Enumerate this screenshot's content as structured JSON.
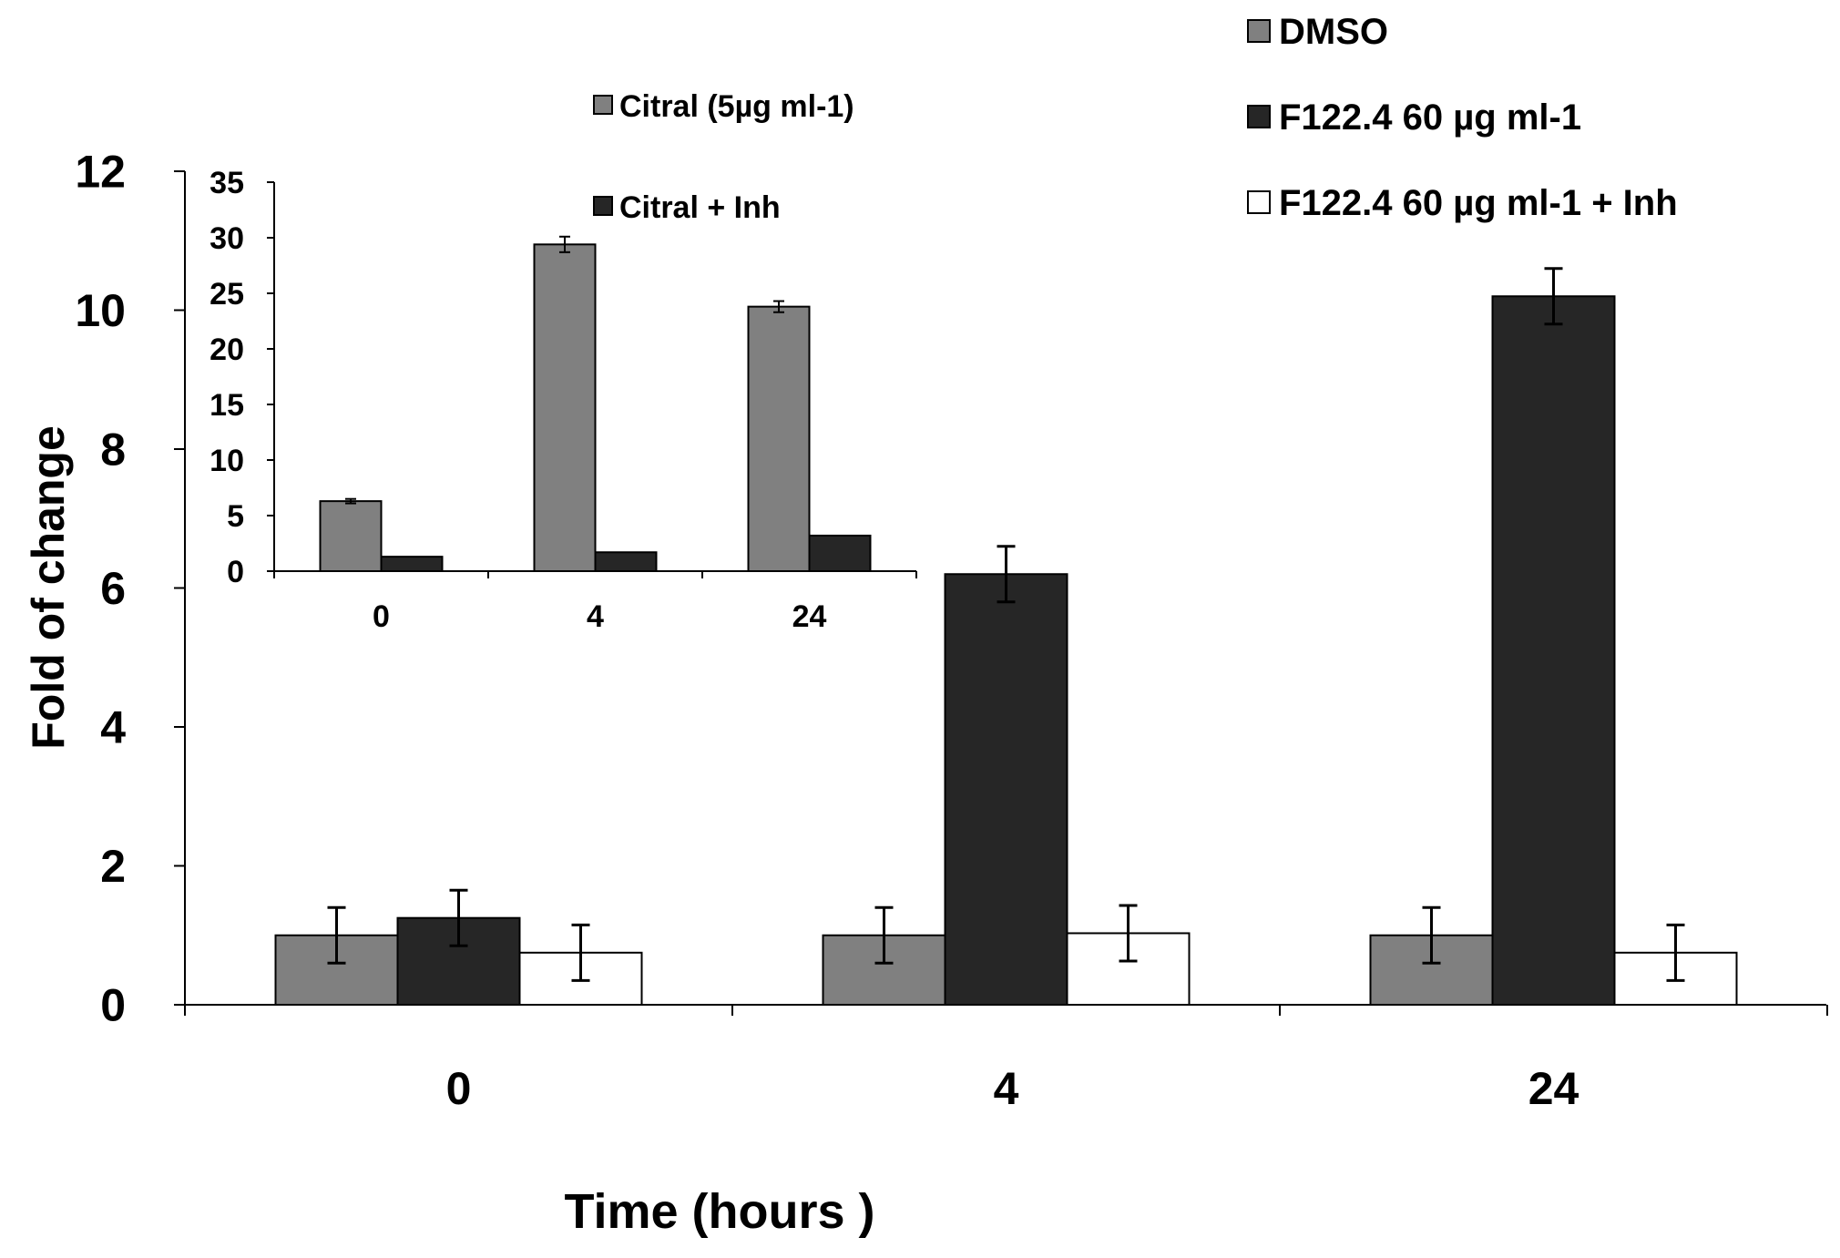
{
  "chart_data": [
    {
      "id": "main",
      "type": "bar",
      "title": "",
      "xlabel": "Time (hours )",
      "ylabel": "Fold of change",
      "ylim": [
        0,
        12
      ],
      "yticks": [
        0,
        2,
        4,
        6,
        8,
        10,
        12
      ],
      "categories": [
        "0",
        "4",
        "24"
      ],
      "series": [
        {
          "name": "DMSO",
          "color": "#808080",
          "values": [
            1.0,
            1.0,
            1.0
          ],
          "errors": [
            0.4,
            0.4,
            0.4
          ]
        },
        {
          "name": "F122.4 60 µg ml-1",
          "color": "#262626",
          "values": [
            1.25,
            6.2,
            10.2
          ],
          "errors": [
            0.4,
            0.4,
            0.4
          ]
        },
        {
          "name": "F122.4 60 µg ml-1 + Inh",
          "color": "#ffffff",
          "values": [
            0.75,
            1.03,
            0.75
          ],
          "errors": [
            0.4,
            0.4,
            0.4
          ]
        }
      ],
      "legend_position": "top-right"
    },
    {
      "id": "inset",
      "type": "bar",
      "title": "",
      "xlabel": "",
      "ylabel": "",
      "ylim": [
        0,
        35
      ],
      "yticks": [
        0,
        5,
        10,
        15,
        20,
        25,
        30,
        35
      ],
      "categories": [
        "0",
        "4",
        "24"
      ],
      "series": [
        {
          "name": "Citral (5µg ml-1)",
          "color": "#808080",
          "values": [
            6.3,
            29.4,
            23.8
          ],
          "errors": [
            0.2,
            0.7,
            0.5
          ]
        },
        {
          "name": "Citral + Inh",
          "color": "#262626",
          "values": [
            1.3,
            1.7,
            3.2
          ],
          "errors": [
            0,
            0,
            0
          ]
        }
      ],
      "legend_position": "top-center"
    }
  ]
}
